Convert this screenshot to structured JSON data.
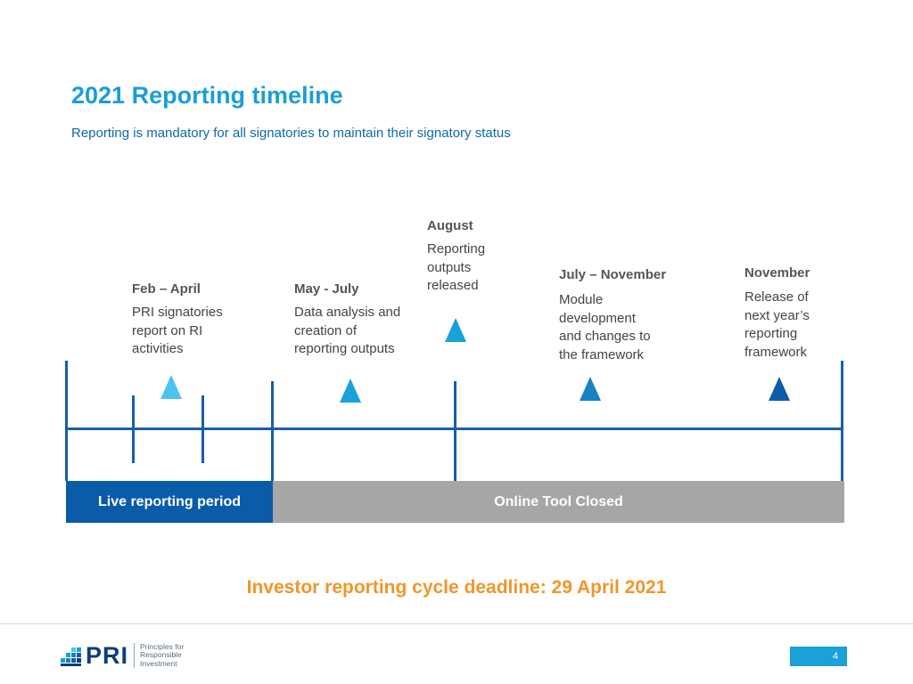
{
  "title": "2021 Reporting timeline",
  "subtitle": "Reporting is mandatory for all signatories to maintain their signatory status",
  "phases": [
    {
      "head": "Feb – April",
      "body": "PRI signatories\nreport on RI\nactivities",
      "color": "#4fc3ef"
    },
    {
      "head": "May - July",
      "body": "Data analysis and\ncreation of\nreporting outputs",
      "color": "#1aa1d8"
    },
    {
      "head": "August",
      "body": "Reporting\noutputs\nreleased",
      "color": "#1aa1d8"
    },
    {
      "head": "July – November",
      "body": "Module\ndevelopment\nand changes to\nthe framework",
      "color": "#1782c4"
    },
    {
      "head": "November",
      "body": "Release of\nnext year’s\nreporting\nframework",
      "color": "#0d5ca8"
    }
  ],
  "bars": {
    "live": "Live reporting period",
    "closed": "Online Tool Closed"
  },
  "deadline": "Investor reporting cycle deadline: 29 April 2021",
  "logo": {
    "word": "PRI",
    "tagline": "Principles for\nResponsible\nInvestment"
  },
  "page_number": "4"
}
